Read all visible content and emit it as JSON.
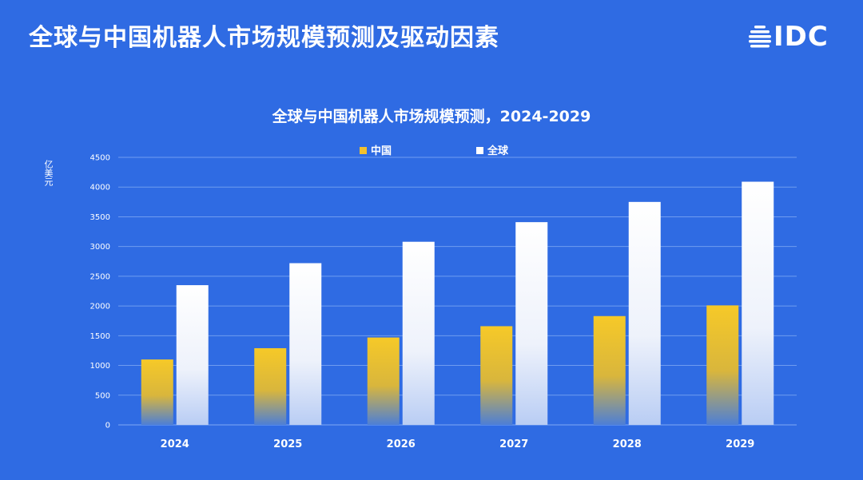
{
  "header": {
    "title": "全球与中国机器人市场规模预测及驱动因素",
    "logo_text": "IDC"
  },
  "colors": {
    "background": "#2f6be3",
    "china_bar": "#f2c12e",
    "global_bar": "#ffffff",
    "gridline": "#6f9cf0"
  },
  "chart_data": {
    "type": "bar",
    "title": "全球与中国机器人市场规模预测，2024-2029",
    "ylabel": "亿美元",
    "xlabel": "",
    "categories": [
      "2024",
      "2025",
      "2026",
      "2027",
      "2028",
      "2029"
    ],
    "series": [
      {
        "name": "中国",
        "values": [
          1100,
          1290,
          1470,
          1660,
          1830,
          2010
        ]
      },
      {
        "name": "全球",
        "values": [
          2350,
          2720,
          3080,
          3410,
          3750,
          4090
        ]
      }
    ],
    "ylim": [
      0,
      4500
    ],
    "yticks": [
      "0",
      "500",
      "1000",
      "1500",
      "2000",
      "2500",
      "3000",
      "3500",
      "4000",
      "4500"
    ],
    "grid": true,
    "legend_position": "top-center"
  }
}
